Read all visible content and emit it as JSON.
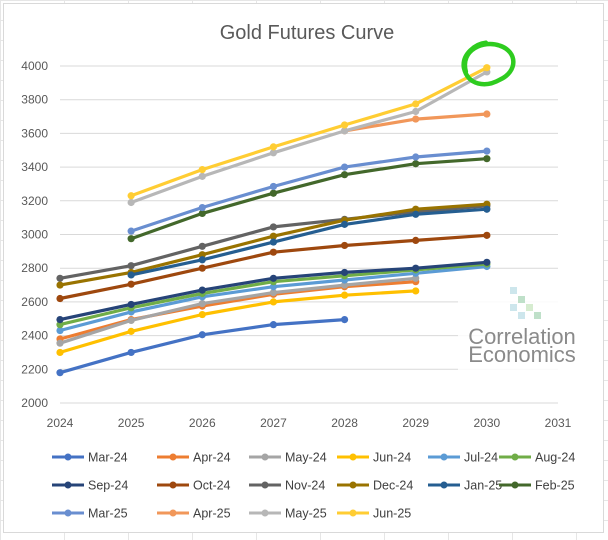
{
  "chart_data": {
    "type": "line",
    "title": "Gold Futures Curve",
    "xlabel": "",
    "ylabel": "",
    "xlim": [
      2024,
      2031
    ],
    "ylim": [
      2000,
      4000
    ],
    "x_ticks": [
      2024,
      2025,
      2026,
      2027,
      2028,
      2029,
      2030,
      2031
    ],
    "y_ticks": [
      2000,
      2200,
      2400,
      2600,
      2800,
      3000,
      3200,
      3400,
      3600,
      3800,
      4000
    ],
    "legend_position": "bottom",
    "series": [
      {
        "name": "Mar-24",
        "color": "#4472C4",
        "x": [
          2024,
          2025,
          2026,
          2027,
          2028
        ],
        "values": [
          2180,
          2300,
          2405,
          2465,
          2495
        ]
      },
      {
        "name": "Apr-24",
        "color": "#ED7D31",
        "x": [
          2024,
          2025,
          2026,
          2027,
          2028,
          2029
        ],
        "values": [
          2380,
          2495,
          2575,
          2645,
          2690,
          2720
        ]
      },
      {
        "name": "May-24",
        "color": "#A5A5A5",
        "x": [
          2024,
          2025,
          2026,
          2027,
          2028,
          2029
        ],
        "values": [
          2355,
          2490,
          2590,
          2655,
          2700,
          2740
        ]
      },
      {
        "name": "Jun-24",
        "color": "#FFC000",
        "x": [
          2024,
          2025,
          2026,
          2027,
          2028,
          2029
        ],
        "values": [
          2300,
          2425,
          2525,
          2600,
          2640,
          2665
        ]
      },
      {
        "name": "Jul-24",
        "color": "#5B9BD5",
        "x": [
          2024,
          2025,
          2026,
          2027,
          2028,
          2029,
          2030
        ],
        "values": [
          2430,
          2540,
          2630,
          2690,
          2730,
          2770,
          2810
        ]
      },
      {
        "name": "Aug-24",
        "color": "#70AD47",
        "x": [
          2024,
          2025,
          2026,
          2027,
          2028,
          2029,
          2030
        ],
        "values": [
          2465,
          2565,
          2650,
          2720,
          2755,
          2790,
          2825
        ]
      },
      {
        "name": "Sep-24",
        "color": "#264478",
        "x": [
          2024,
          2025,
          2026,
          2027,
          2028,
          2029,
          2030
        ],
        "values": [
          2495,
          2585,
          2670,
          2740,
          2775,
          2800,
          2835
        ]
      },
      {
        "name": "Oct-24",
        "color": "#9E480E",
        "x": [
          2024,
          2025,
          2026,
          2027,
          2028,
          2029,
          2030
        ],
        "values": [
          2620,
          2705,
          2800,
          2895,
          2935,
          2965,
          2995
        ]
      },
      {
        "name": "Nov-24",
        "color": "#636363",
        "x": [
          2024,
          2025,
          2026,
          2027,
          2028,
          2029,
          2030
        ],
        "values": [
          2740,
          2815,
          2930,
          3045,
          3090,
          3135,
          3170
        ]
      },
      {
        "name": "Dec-24",
        "color": "#997300",
        "x": [
          2024,
          2025,
          2026,
          2027,
          2028,
          2029,
          2030
        ],
        "values": [
          2700,
          2775,
          2880,
          2990,
          3085,
          3150,
          3180
        ]
      },
      {
        "name": "Jan-25",
        "color": "#255E91",
        "x": [
          2025,
          2026,
          2027,
          2028,
          2029,
          2030
        ],
        "values": [
          2760,
          2850,
          2955,
          3060,
          3120,
          3150
        ]
      },
      {
        "name": "Feb-25",
        "color": "#43682B",
        "x": [
          2025,
          2026,
          2027,
          2028,
          2029,
          2030
        ],
        "values": [
          2975,
          3125,
          3245,
          3355,
          3420,
          3450
        ]
      },
      {
        "name": "Mar-25",
        "color": "#698ED0",
        "x": [
          2025,
          2026,
          2027,
          2028,
          2029,
          2030
        ],
        "values": [
          3020,
          3160,
          3285,
          3400,
          3460,
          3495
        ]
      },
      {
        "name": "Apr-25",
        "color": "#F1975A",
        "x": [
          2028,
          2029,
          2030
        ],
        "values": [
          3615,
          3685,
          3715
        ]
      },
      {
        "name": "May-25",
        "color": "#B7B7B7",
        "x": [
          2025,
          2026,
          2027,
          2028,
          2029,
          2030
        ],
        "values": [
          3190,
          3345,
          3485,
          3615,
          3730,
          3965
        ]
      },
      {
        "name": "Jun-25",
        "color": "#FFCD33",
        "x": [
          2025,
          2026,
          2027,
          2028,
          2029,
          2030
        ],
        "values": [
          3230,
          3385,
          3520,
          3650,
          3775,
          3990
        ]
      }
    ],
    "annotation": {
      "name": "green circle highlight around 2030 peak",
      "color": "#2ECC1F"
    }
  },
  "watermark": {
    "line1": "Correlation",
    "line2": "Economics",
    "color": "#8a8a8a"
  }
}
